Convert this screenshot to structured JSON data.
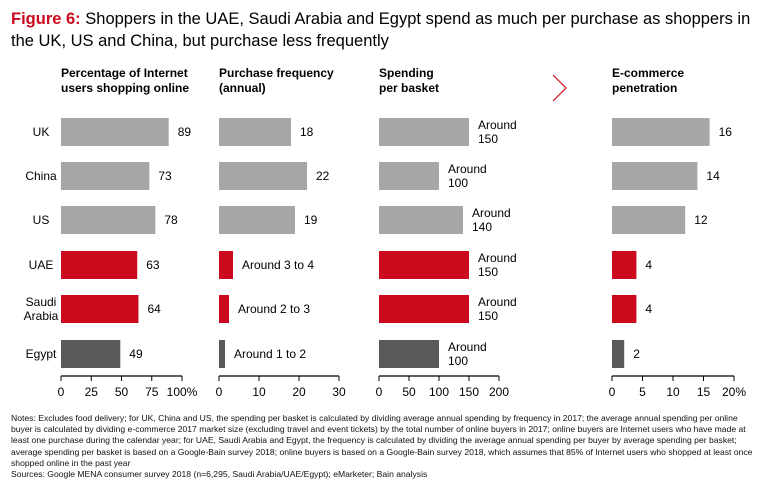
{
  "title": {
    "label": "Figure 6:",
    "text": " Shoppers in the UAE, Saudi Arabia and Egypt spend as much per purchase as shoppers in the UK, US and China, but purchase less frequently"
  },
  "colors": {
    "highlight": "#cc0a1e",
    "comparison": "#a6a6a6",
    "egypt": "#595959",
    "axis": "#000000"
  },
  "chart_data": [
    {
      "type": "bar",
      "title": [
        "Percentage of Internet",
        "users shopping online"
      ],
      "categories": [
        "UK",
        "China",
        "US",
        "UAE",
        "Saudi Arabia",
        "Egypt"
      ],
      "category_labels": [
        [
          "UK"
        ],
        [
          "China"
        ],
        [
          "US"
        ],
        [
          "UAE"
        ],
        [
          "Saudi",
          "Arabia"
        ],
        [
          "Egypt"
        ]
      ],
      "values": [
        89,
        73,
        78,
        63,
        64,
        49
      ],
      "data_labels": [
        [
          "89"
        ],
        [
          "73"
        ],
        [
          "78"
        ],
        [
          "63"
        ],
        [
          "64"
        ],
        [
          "49"
        ]
      ],
      "colors": [
        "comparison",
        "comparison",
        "comparison",
        "highlight",
        "highlight",
        "egypt"
      ],
      "xlim": [
        0,
        100
      ],
      "ticks": [
        0,
        25,
        50,
        75,
        100
      ],
      "tick_labels": [
        "0",
        "25",
        "50",
        "75",
        "100%"
      ]
    },
    {
      "type": "bar",
      "title": [
        "Purchase frequency",
        "(annual)"
      ],
      "categories": [
        "UK",
        "China",
        "US",
        "UAE",
        "Saudi Arabia",
        "Egypt"
      ],
      "values": [
        18,
        22,
        19,
        3.5,
        2.5,
        1.5
      ],
      "data_labels": [
        [
          "18"
        ],
        [
          "22"
        ],
        [
          "19"
        ],
        [
          "Around 3 to 4"
        ],
        [
          "Around 2 to 3"
        ],
        [
          "Around 1 to 2"
        ]
      ],
      "colors": [
        "comparison",
        "comparison",
        "comparison",
        "highlight",
        "highlight",
        "egypt"
      ],
      "xlim": [
        0,
        30
      ],
      "ticks": [
        0,
        10,
        20,
        30
      ],
      "tick_labels": [
        "0",
        "10",
        "20",
        "30"
      ]
    },
    {
      "type": "bar",
      "title": [
        "Spending",
        "per basket"
      ],
      "categories": [
        "UK",
        "China",
        "US",
        "UAE",
        "Saudi Arabia",
        "Egypt"
      ],
      "values": [
        150,
        100,
        140,
        150,
        150,
        100
      ],
      "data_labels": [
        [
          "Around",
          "150"
        ],
        [
          "Around",
          "100"
        ],
        [
          "Around",
          "140"
        ],
        [
          "Around",
          "150"
        ],
        [
          "Around",
          "150"
        ],
        [
          "Around",
          "100"
        ]
      ],
      "colors": [
        "comparison",
        "comparison",
        "comparison",
        "highlight",
        "highlight",
        "egypt"
      ],
      "xlim": [
        0,
        200
      ],
      "ticks": [
        0,
        50,
        100,
        150,
        200
      ],
      "tick_labels": [
        "0",
        "50",
        "100",
        "150",
        "200"
      ]
    },
    {
      "type": "bar",
      "title": [
        "E-commerce",
        "penetration"
      ],
      "categories": [
        "UK",
        "China",
        "US",
        "UAE",
        "Saudi Arabia",
        "Egypt"
      ],
      "values": [
        16,
        14,
        12,
        4,
        4,
        2
      ],
      "data_labels": [
        [
          "16"
        ],
        [
          "14"
        ],
        [
          "12"
        ],
        [
          "4"
        ],
        [
          "4"
        ],
        [
          "2"
        ]
      ],
      "colors": [
        "comparison",
        "comparison",
        "comparison",
        "highlight",
        "highlight",
        "egypt"
      ],
      "xlim": [
        0,
        20
      ],
      "ticks": [
        0,
        5,
        10,
        15,
        20
      ],
      "tick_labels": [
        "0",
        "5",
        "10",
        "15",
        "20%"
      ]
    }
  ],
  "notes": "Notes: Excludes food delivery; for UK, China and US, the spending per basket is calculated by dividing average annual spending by frequency in 2017; the average annual spending per online buyer is calculated by dividing e-commerce 2017 market size (excluding travel and event tickets) by the total number of online buyers in 2017; online buyers are Internet users who have made at least one purchase during the calendar year; for UAE, Saudi Arabia and Egypt, the frequency is calculated by dividing the average annual spending per buyer by average spending per basket; average spending per basket is based on a Google-Bain survey 2018; online buyers is based on a Google-Bain survey 2018, which assumes that 85% of Internet users who shopped at least once shopped online in the past year",
  "sources": "Sources: Google MENA consumer survey 2018 (n=6,295, Saudi Arabia/UAE/Egypt); eMarketer; Bain analysis"
}
